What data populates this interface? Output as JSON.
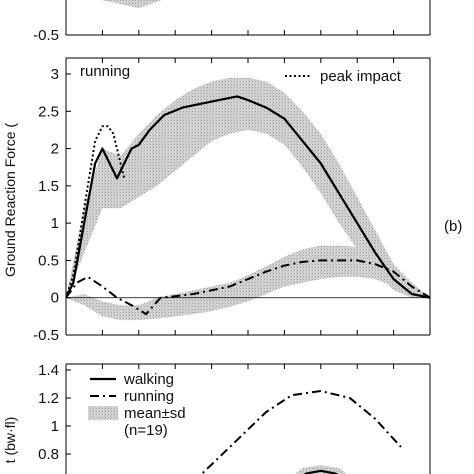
{
  "figure": {
    "ylabel_top": "Ground Reaction Force (",
    "ylabel_bottom": "t (bw·fl)",
    "panel_label": "(b)"
  },
  "chart_data": [
    {
      "type": "line",
      "panel": "top (partially visible)",
      "ylim": [
        -0.5,
        0.1
      ],
      "yticks": [
        -0.5
      ],
      "ytick_labels": [
        "-0.5"
      ],
      "grid": false,
      "series": [
        {
          "name": "",
          "style": "solid",
          "x": [
            0.0,
            0.1,
            0.2,
            0.3,
            0.4,
            0.5
          ],
          "y": [
            -0.05,
            -0.2,
            -0.25,
            -0.18,
            -0.1,
            -0.02
          ]
        }
      ],
      "band": {
        "x": [
          0.0,
          0.1,
          0.2,
          0.3,
          0.4,
          0.5
        ],
        "upper": [
          0.0,
          -0.1,
          -0.18,
          -0.1,
          -0.05,
          0.0
        ],
        "lower": [
          -0.1,
          -0.28,
          -0.33,
          -0.25,
          -0.15,
          -0.05
        ]
      }
    },
    {
      "type": "line",
      "panel": "running",
      "title": "running",
      "ylim": [
        -0.5,
        3
      ],
      "yticks": [
        -0.5,
        0,
        0.5,
        1,
        1.5,
        2,
        2.5,
        3
      ],
      "ytick_labels": [
        "-0.5",
        "0",
        "0.5",
        "1",
        "1.5",
        "2",
        "2.5",
        "3"
      ],
      "grid": false,
      "legend": {
        "position": "top-right",
        "entries": [
          {
            "label": "peak impact",
            "style": "dotted"
          }
        ]
      },
      "series": [
        {
          "name": "peak impact",
          "style": "dotted",
          "x": [
            0.0,
            0.02,
            0.05,
            0.08,
            0.1,
            0.115,
            0.13,
            0.145,
            0.16
          ],
          "y": [
            0.0,
            0.3,
            1.2,
            2.1,
            2.3,
            2.3,
            2.2,
            1.9,
            1.6
          ]
        },
        {
          "name": "",
          "style": "solid",
          "x": [
            0.0,
            0.02,
            0.05,
            0.08,
            0.1,
            0.12,
            0.14,
            0.16,
            0.18,
            0.2,
            0.23,
            0.27,
            0.32,
            0.37,
            0.42,
            0.47,
            0.5,
            0.55,
            0.6,
            0.65,
            0.7,
            0.75,
            0.8,
            0.85,
            0.9,
            0.95,
            1.0
          ],
          "y": [
            0.0,
            0.2,
            1.0,
            1.8,
            2.0,
            1.8,
            1.6,
            1.8,
            2.0,
            2.05,
            2.25,
            2.45,
            2.55,
            2.6,
            2.65,
            2.7,
            2.65,
            2.55,
            2.4,
            2.1,
            1.8,
            1.4,
            1.0,
            0.6,
            0.25,
            0.05,
            0.0
          ]
        },
        {
          "name": "",
          "style": "dash-dot",
          "x": [
            0.0,
            0.03,
            0.06,
            0.1,
            0.14,
            0.18,
            0.22,
            0.26,
            0.3,
            0.35,
            0.4,
            0.45,
            0.5,
            0.55,
            0.6,
            0.65,
            0.7,
            0.75,
            0.8,
            0.85,
            0.9,
            0.95,
            1.0
          ],
          "y": [
            0.0,
            0.2,
            0.28,
            0.15,
            0.0,
            -0.1,
            -0.22,
            0.0,
            0.02,
            0.05,
            0.1,
            0.15,
            0.25,
            0.35,
            0.43,
            0.48,
            0.5,
            0.5,
            0.5,
            0.45,
            0.35,
            0.15,
            0.0
          ]
        }
      ],
      "bands": [
        {
          "x": [
            0.0,
            0.05,
            0.1,
            0.15,
            0.2,
            0.25,
            0.3,
            0.35,
            0.4,
            0.45,
            0.5,
            0.55,
            0.6,
            0.65,
            0.7,
            0.75,
            0.8,
            0.85,
            0.9,
            0.95,
            1.0
          ],
          "upper": [
            0.0,
            1.2,
            2.0,
            1.9,
            2.2,
            2.45,
            2.65,
            2.8,
            2.9,
            2.95,
            2.95,
            2.9,
            2.75,
            2.5,
            2.2,
            1.8,
            1.35,
            0.9,
            0.45,
            0.15,
            0.0
          ],
          "lower": [
            0.0,
            0.6,
            1.2,
            1.2,
            1.35,
            1.5,
            1.7,
            1.9,
            2.1,
            2.2,
            2.25,
            2.2,
            2.05,
            1.75,
            1.4,
            1.0,
            0.65,
            0.35,
            0.1,
            0.0,
            0.0
          ]
        },
        {
          "x": [
            0.0,
            0.05,
            0.1,
            0.15,
            0.2,
            0.25,
            0.3,
            0.35,
            0.4,
            0.45,
            0.5,
            0.55,
            0.6,
            0.65,
            0.7,
            0.75,
            0.8,
            0.85,
            0.9,
            0.95,
            1.0
          ],
          "upper": [
            0.0,
            0.05,
            -0.05,
            -0.1,
            -0.1,
            0.0,
            0.05,
            0.1,
            0.15,
            0.2,
            0.3,
            0.42,
            0.55,
            0.65,
            0.7,
            0.7,
            0.68,
            0.6,
            0.45,
            0.2,
            0.0
          ],
          "lower": [
            0.0,
            -0.1,
            -0.25,
            -0.3,
            -0.3,
            -0.28,
            -0.25,
            -0.22,
            -0.18,
            -0.12,
            -0.05,
            0.05,
            0.15,
            0.2,
            0.25,
            0.28,
            0.28,
            0.25,
            0.15,
            0.05,
            0.0
          ]
        }
      ]
    },
    {
      "type": "line",
      "panel": "bottom (partially visible)",
      "ylim": [
        0.6,
        1.4
      ],
      "yticks": [
        0.6,
        0.8,
        1.0,
        1.2,
        1.4
      ],
      "ytick_labels": [
        "0.6",
        "0.8",
        "1",
        "1.2",
        "1.4"
      ],
      "grid": false,
      "legend": {
        "position": "top-left",
        "entries": [
          {
            "label": "walking",
            "style": "solid"
          },
          {
            "label": "running",
            "style": "dash-dot"
          },
          {
            "label": "mean±sd",
            "style": "shaded"
          },
          {
            "label": "(n=19)",
            "style": "none"
          }
        ]
      },
      "series": [
        {
          "name": "running",
          "style": "dash-dot",
          "x": [
            0.35,
            0.45,
            0.55,
            0.62,
            0.7,
            0.78,
            0.85,
            0.92
          ],
          "y": [
            0.6,
            0.85,
            1.1,
            1.22,
            1.25,
            1.2,
            1.05,
            0.85
          ]
        },
        {
          "name": "walking",
          "style": "solid",
          "x": [
            0.62,
            0.66,
            0.7,
            0.74,
            0.78
          ],
          "y": [
            0.6,
            0.66,
            0.68,
            0.66,
            0.6
          ]
        }
      ],
      "band": {
        "x": [
          0.6,
          0.65,
          0.7,
          0.75,
          0.8
        ],
        "upper": [
          0.6,
          0.7,
          0.72,
          0.7,
          0.6
        ],
        "lower": [
          0.6,
          0.6,
          0.6,
          0.6,
          0.6
        ]
      }
    }
  ]
}
